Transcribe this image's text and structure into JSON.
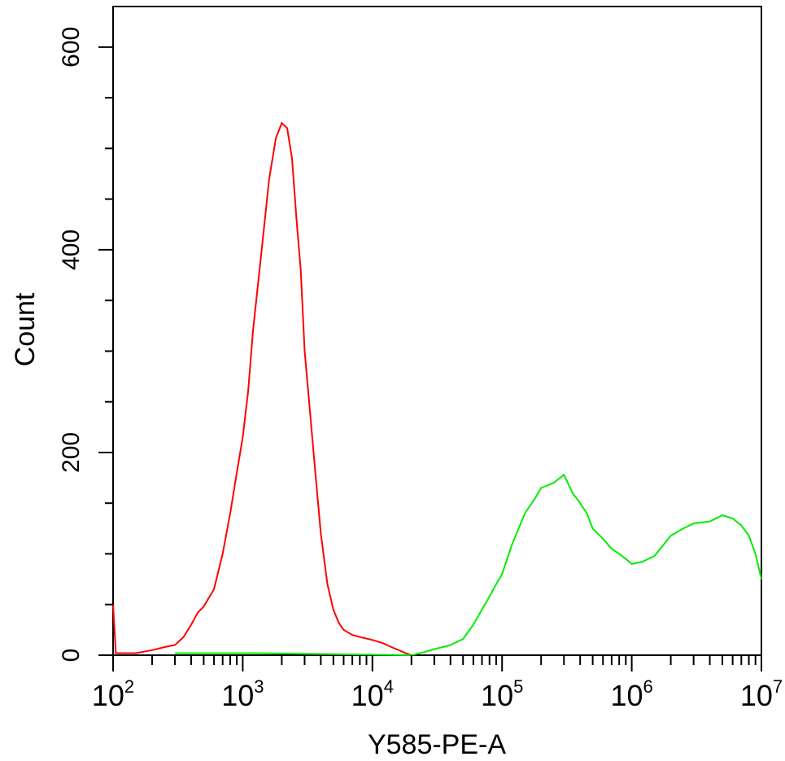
{
  "chart_data": {
    "type": "line",
    "title": "",
    "xlabel": "Y585-PE-A",
    "ylabel": "Count",
    "x_scale": "log",
    "xlim": [
      100,
      10000000
    ],
    "ylim": [
      0,
      640
    ],
    "grid": false,
    "y_ticks": [
      {
        "value": 0,
        "label": "0"
      },
      {
        "value": 200,
        "label": "200"
      },
      {
        "value": 400,
        "label": "400"
      },
      {
        "value": 600,
        "label": "600"
      }
    ],
    "x_ticks": [
      {
        "value": 100,
        "base": "10",
        "exp": "2"
      },
      {
        "value": 1000,
        "base": "10",
        "exp": "3"
      },
      {
        "value": 10000,
        "base": "10",
        "exp": "4"
      },
      {
        "value": 100000,
        "base": "10",
        "exp": "5"
      },
      {
        "value": 1000000,
        "base": "10",
        "exp": "6"
      },
      {
        "value": 10000000,
        "base": "10",
        "exp": "7"
      }
    ],
    "series": [
      {
        "color": "#ff0000",
        "x": [
          100,
          105,
          150,
          200,
          250,
          300,
          350,
          400,
          450,
          500,
          600,
          700,
          800,
          900,
          1000,
          1100,
          1200,
          1400,
          1600,
          1800,
          2000,
          2200,
          2400,
          2600,
          2800,
          3000,
          3300,
          3600,
          4000,
          4500,
          5000,
          5500,
          6000,
          7000,
          8000,
          10000,
          12000,
          14000,
          16000,
          18000,
          20000
        ],
        "y": [
          50,
          2,
          2,
          5,
          8,
          10,
          18,
          30,
          42,
          48,
          65,
          100,
          140,
          180,
          215,
          260,
          320,
          400,
          470,
          510,
          525,
          520,
          490,
          430,
          380,
          300,
          240,
          185,
          120,
          70,
          45,
          32,
          25,
          20,
          18,
          15,
          12,
          8,
          5,
          2,
          0
        ]
      },
      {
        "color": "#00ee00",
        "x": [
          300,
          600,
          700,
          1200,
          20000,
          25000,
          30000,
          35000,
          40000,
          50000,
          60000,
          70000,
          80000,
          90000,
          100000,
          120000,
          150000,
          180000,
          200000,
          250000,
          300000,
          350000,
          400000,
          450000,
          500000,
          600000,
          700000,
          800000,
          900000,
          1000000,
          1200000,
          1500000,
          2000000,
          2500000,
          3000000,
          4000000,
          5000000,
          6000000,
          7000000,
          8000000,
          9000000,
          10000000
        ],
        "y": [
          2,
          2,
          2,
          2,
          0,
          3,
          6,
          8,
          10,
          16,
          30,
          45,
          58,
          70,
          80,
          110,
          140,
          155,
          165,
          170,
          178,
          160,
          150,
          140,
          125,
          115,
          105,
          100,
          95,
          90,
          92,
          98,
          118,
          125,
          130,
          132,
          138,
          135,
          128,
          118,
          100,
          75
        ]
      }
    ]
  }
}
